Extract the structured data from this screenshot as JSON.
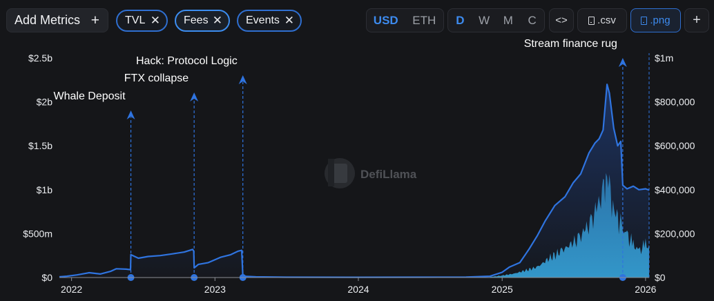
{
  "toolbar": {
    "add_metrics": "Add Metrics",
    "add_icon": "+",
    "chips": [
      {
        "label": "TVL",
        "close": "✕"
      },
      {
        "label": "Fees",
        "close": "✕"
      },
      {
        "label": "Events",
        "close": "✕"
      }
    ],
    "currency": {
      "options": [
        "USD",
        "ETH"
      ],
      "selected": "USD"
    },
    "period": {
      "options": [
        "D",
        "W",
        "M",
        "C"
      ],
      "selected": "D"
    },
    "embed_label": "<>",
    "csv_label": ".csv",
    "png_label": ".png",
    "extra_label": "+",
    "icons": [
      "plus-icon",
      "close-icon",
      "code-icon",
      "file-download-icon"
    ]
  },
  "colors": {
    "background": "#151619",
    "tvl_line": "#2f74e0",
    "fees_area": "#37a7dc",
    "event_line": "#2f74e0",
    "accent": "#3d8bef"
  },
  "watermark": {
    "text": "DefiLlama",
    "icon": "llama-logo-icon"
  },
  "chart_data": {
    "type": "area",
    "x_type": "date",
    "x_ticks": [
      "2022",
      "2023",
      "2024",
      "2025",
      "2026"
    ],
    "y_left": {
      "ticks": [
        "$0",
        "$500m",
        "$1b",
        "$1.5b",
        "$2b",
        "$2.5b"
      ],
      "range": [
        0,
        2500000000
      ],
      "series": "TVL"
    },
    "y_right": {
      "ticks": [
        "$0",
        "$200,000",
        "$400,000",
        "$600,000",
        "$800,000",
        "$1m"
      ],
      "range": [
        0,
        1000000
      ],
      "series": "Fees"
    },
    "grid": false,
    "legend": "none",
    "series": [
      {
        "key": "TVL",
        "axis": "left",
        "style": "line",
        "points": [
          [
            "2021-12-01",
            8000000
          ],
          [
            "2021-12-20",
            15000000
          ],
          [
            "2022-01-15",
            30000000
          ],
          [
            "2022-02-15",
            55000000
          ],
          [
            "2022-03-15",
            40000000
          ],
          [
            "2022-04-10",
            70000000
          ],
          [
            "2022-04-25",
            100000000
          ],
          [
            "2022-05-20",
            95000000
          ],
          [
            "2022-05-31",
            90000000
          ],
          [
            "2022-06-01",
            260000000
          ],
          [
            "2022-06-20",
            220000000
          ],
          [
            "2022-07-15",
            240000000
          ],
          [
            "2022-08-15",
            250000000
          ],
          [
            "2022-09-15",
            270000000
          ],
          [
            "2022-10-15",
            290000000
          ],
          [
            "2022-11-05",
            320000000
          ],
          [
            "2022-11-08",
            300000000
          ],
          [
            "2022-11-09",
            110000000
          ],
          [
            "2022-11-20",
            150000000
          ],
          [
            "2022-12-15",
            170000000
          ],
          [
            "2023-01-15",
            230000000
          ],
          [
            "2023-02-10",
            260000000
          ],
          [
            "2023-03-01",
            300000000
          ],
          [
            "2023-03-10",
            310000000
          ],
          [
            "2023-03-13",
            15000000
          ],
          [
            "2023-04-15",
            8000000
          ],
          [
            "2023-07-01",
            4000000
          ],
          [
            "2024-01-01",
            3000000
          ],
          [
            "2024-06-01",
            4000000
          ],
          [
            "2024-10-01",
            5000000
          ],
          [
            "2024-12-01",
            15000000
          ],
          [
            "2025-01-01",
            60000000
          ],
          [
            "2025-01-20",
            120000000
          ],
          [
            "2025-02-15",
            170000000
          ],
          [
            "2025-03-10",
            320000000
          ],
          [
            "2025-04-01",
            480000000
          ],
          [
            "2025-04-20",
            640000000
          ],
          [
            "2025-05-15",
            820000000
          ],
          [
            "2025-06-10",
            920000000
          ],
          [
            "2025-07-01",
            1080000000
          ],
          [
            "2025-07-20",
            1180000000
          ],
          [
            "2025-08-10",
            1420000000
          ],
          [
            "2025-08-25",
            1530000000
          ],
          [
            "2025-09-05",
            1580000000
          ],
          [
            "2025-09-15",
            1680000000
          ],
          [
            "2025-09-25",
            2200000000
          ],
          [
            "2025-10-01",
            2100000000
          ],
          [
            "2025-10-12",
            1700000000
          ],
          [
            "2025-10-22",
            1500000000
          ],
          [
            "2025-10-30",
            1550000000
          ],
          [
            "2025-11-04",
            1050000000
          ],
          [
            "2025-11-15",
            1010000000
          ],
          [
            "2025-12-01",
            1040000000
          ],
          [
            "2025-12-15",
            1000000000
          ],
          [
            "2026-01-01",
            1010000000
          ],
          [
            "2026-01-10",
            995000000
          ]
        ]
      },
      {
        "key": "Fees",
        "axis": "right",
        "style": "area",
        "points": [
          [
            "2024-12-01",
            3000
          ],
          [
            "2025-01-01",
            9000
          ],
          [
            "2025-02-01",
            18000
          ],
          [
            "2025-03-01",
            32000
          ],
          [
            "2025-04-01",
            48000
          ],
          [
            "2025-05-01",
            88000
          ],
          [
            "2025-06-01",
            120000
          ],
          [
            "2025-07-01",
            160000
          ],
          [
            "2025-07-15",
            175000
          ],
          [
            "2025-08-01",
            220000
          ],
          [
            "2025-08-15",
            245000
          ],
          [
            "2025-09-01",
            330000
          ],
          [
            "2025-09-15",
            380000
          ],
          [
            "2025-09-22",
            460000
          ],
          [
            "2025-10-01",
            400000
          ],
          [
            "2025-10-10",
            330000
          ],
          [
            "2025-10-20",
            270000
          ],
          [
            "2025-11-01",
            230000
          ],
          [
            "2025-11-15",
            190000
          ],
          [
            "2025-12-01",
            150000
          ],
          [
            "2025-12-15",
            120000
          ],
          [
            "2026-01-01",
            150000
          ],
          [
            "2026-01-10",
            150000
          ]
        ]
      }
    ],
    "events": [
      {
        "label": "Whale Deposit",
        "date": "2022-06-01"
      },
      {
        "label": "FTX collapse",
        "date": "2022-11-09"
      },
      {
        "label": "Hack: Protocol Logic",
        "date": "2023-03-13"
      },
      {
        "label": "Stream finance rug",
        "date": "2025-11-04"
      }
    ]
  }
}
